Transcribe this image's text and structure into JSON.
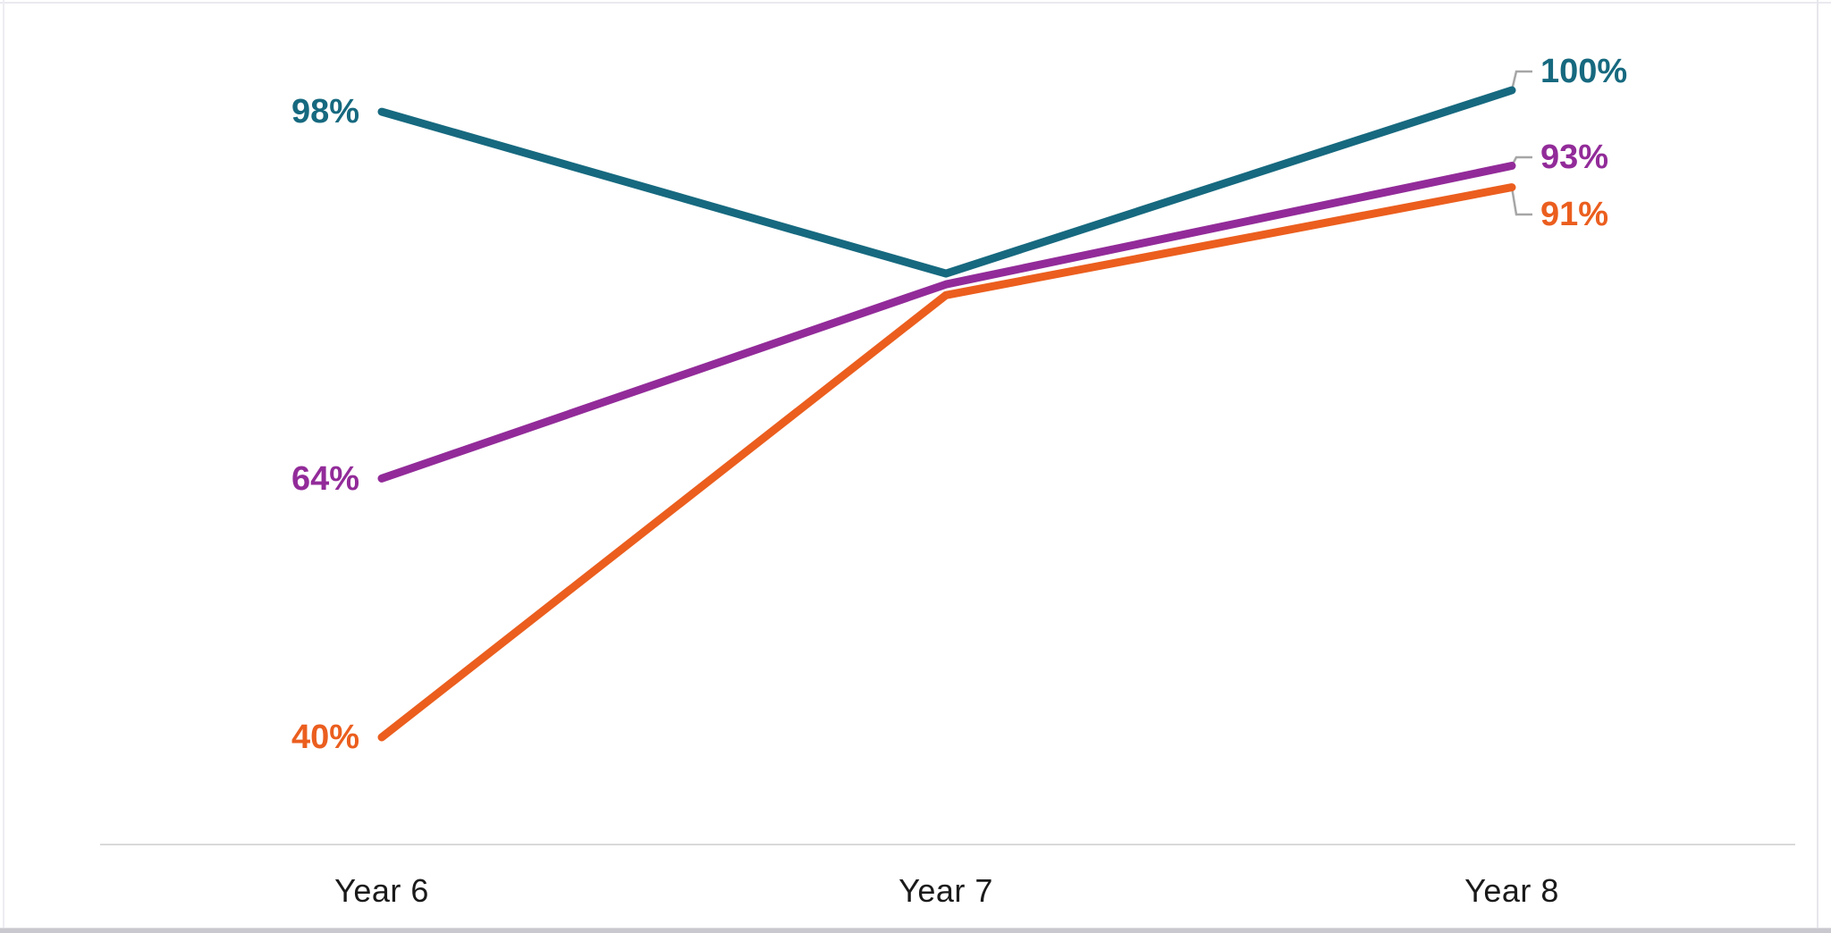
{
  "chart_data": {
    "type": "line",
    "categories": [
      "Year 6",
      "Year 7",
      "Year 8"
    ],
    "series": [
      {
        "name": "teal",
        "color": "#16697F",
        "values": [
          98,
          83,
          100
        ],
        "start_label": "98%",
        "end_label": "100%"
      },
      {
        "name": "purple",
        "color": "#922B99",
        "values": [
          64,
          82,
          93
        ],
        "start_label": "64%",
        "end_label": "93%"
      },
      {
        "name": "orange",
        "color": "#EB5E1E",
        "values": [
          40,
          81,
          91
        ],
        "start_label": "40%",
        "end_label": "91%"
      }
    ],
    "title": "",
    "xlabel": "",
    "ylabel": "",
    "ylim": [
      30,
      102
    ],
    "grid": false,
    "legend": "none",
    "colors": {
      "axis_line": "#D9D9D9",
      "leader_line": "#A6A6A6",
      "axis_text": "#1A1A1A",
      "background": "#FFFFFF"
    }
  }
}
